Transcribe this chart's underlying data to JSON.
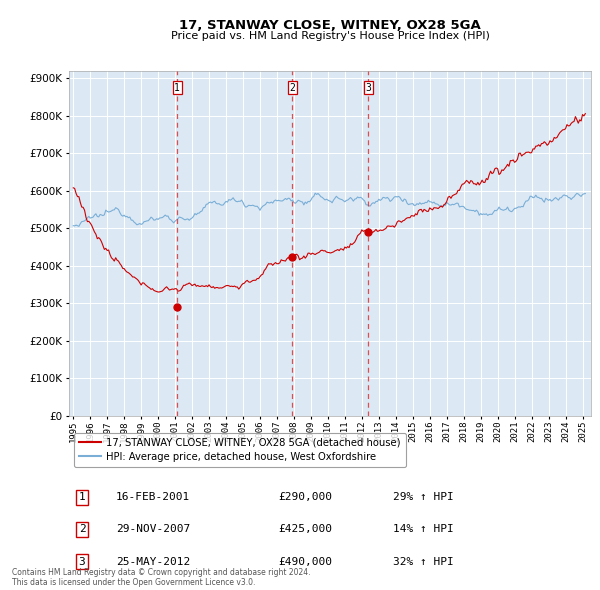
{
  "title": "17, STANWAY CLOSE, WITNEY, OX28 5GA",
  "subtitle": "Price paid vs. HM Land Registry's House Price Index (HPI)",
  "hpi_label": "HPI: Average price, detached house, West Oxfordshire",
  "property_label": "17, STANWAY CLOSE, WITNEY, OX28 5GA (detached house)",
  "transactions": [
    {
      "num": 1,
      "date": "16-FEB-2001",
      "price": 290000,
      "pct": "29%",
      "dir": "↑"
    },
    {
      "num": 2,
      "date": "29-NOV-2007",
      "price": 425000,
      "pct": "14%",
      "dir": "↑"
    },
    {
      "num": 3,
      "date": "25-MAY-2012",
      "price": 490000,
      "pct": "32%",
      "dir": "↑"
    }
  ],
  "t_dates_decimal": [
    2001.12,
    2007.91,
    2012.39
  ],
  "t_prices": [
    290000,
    425000,
    490000
  ],
  "ylim": [
    0,
    920000
  ],
  "yticks": [
    0,
    100000,
    200000,
    300000,
    400000,
    500000,
    600000,
    700000,
    800000,
    900000
  ],
  "xlim_start": 1994.75,
  "xlim_end": 2025.5,
  "background_color": "#dce9f5",
  "red_line_color": "#cc0000",
  "blue_line_color": "#7aaed6",
  "dashed_line_color": "#dd3333",
  "grid_color": "#ffffff",
  "footer_text": "Contains HM Land Registry data © Crown copyright and database right 2024.\nThis data is licensed under the Open Government Licence v3.0.",
  "seed": 12345
}
